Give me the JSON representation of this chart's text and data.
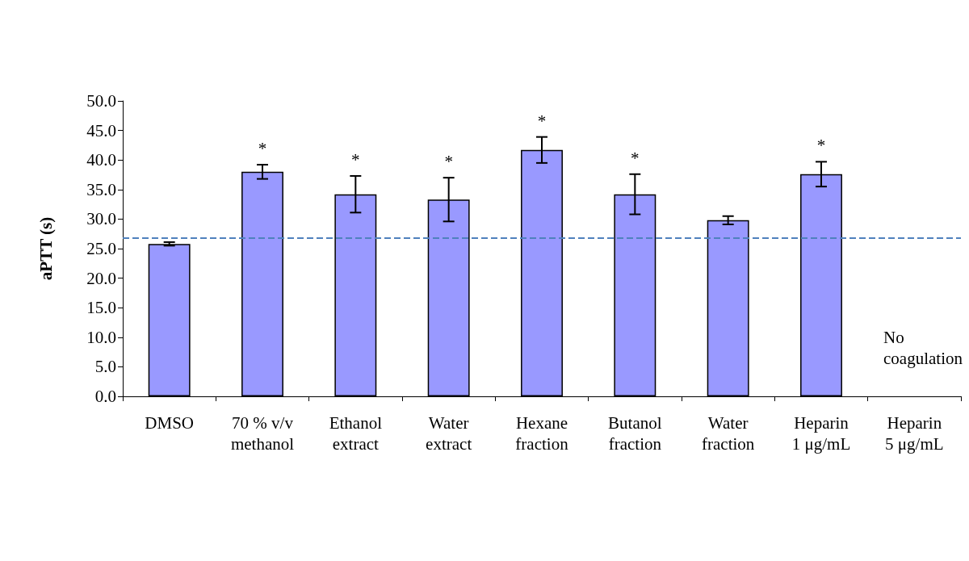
{
  "chart_data": {
    "type": "bar",
    "ylabel": "aPTT (s)",
    "categories": [
      "DMSO",
      "70 % v/v\nmethanol",
      "Ethanol\nextract",
      "Water\nextract",
      "Hexane\nfraction",
      "Butanol\nfraction",
      "Water\nfraction",
      "Heparin\n1 μg/mL",
      "Heparin\n5 μg/mL"
    ],
    "series": [
      {
        "color": "#9999ff",
        "values": [
          25.8,
          38.0,
          34.2,
          33.3,
          41.7,
          34.2,
          29.8,
          37.6,
          null
        ],
        "errors": [
          0.3,
          1.2,
          3.1,
          3.7,
          2.2,
          3.4,
          0.7,
          2.1,
          null
        ]
      }
    ],
    "ylim": [
      0,
      50
    ],
    "yticks": [
      {
        "value": 0,
        "label": "0.0"
      },
      {
        "value": 5,
        "label": "5.0"
      },
      {
        "value": 10,
        "label": "10.0"
      },
      {
        "value": 15,
        "label": "15.0"
      },
      {
        "value": 20,
        "label": "20.0"
      },
      {
        "value": 25,
        "label": "25.0"
      },
      {
        "value": 30,
        "label": "30.0"
      },
      {
        "value": 35,
        "label": "35.0"
      },
      {
        "value": 40,
        "label": "40.0"
      },
      {
        "value": 45,
        "label": "45.0"
      },
      {
        "value": 50,
        "label": "50.0"
      }
    ],
    "ref_lines": [
      {
        "axis": "y",
        "value": 26.8,
        "color": "#4f81bd",
        "line_style": "dashed"
      }
    ],
    "annotations": [
      {
        "text": "*",
        "x": "70 % v/v\nmethanol",
        "y": 38.0
      },
      {
        "text": "*",
        "x": "Ethanol\nextract",
        "y": 34.2
      },
      {
        "text": "*",
        "x": "Water\nextract",
        "y": 33.3
      },
      {
        "text": "*",
        "x": "Hexane\nfraction",
        "y": 41.7
      },
      {
        "text": "*",
        "x": "Butanol\nfraction",
        "y": 34.2
      },
      {
        "text": "*",
        "x": "Heparin\n1 μg/mL",
        "y": 37.6
      },
      "No\ncoagulation"
    ],
    "grid": false
  }
}
